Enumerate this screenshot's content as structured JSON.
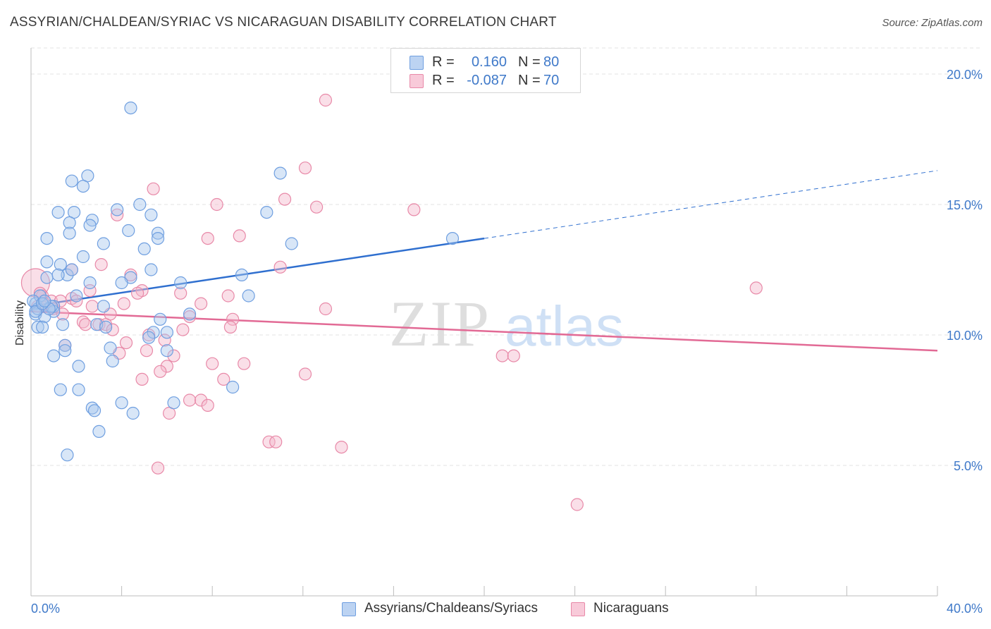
{
  "title": "ASSYRIAN/CHALDEAN/SYRIAC VS NICARAGUAN DISABILITY CORRELATION CHART",
  "source": "Source: ZipAtlas.com",
  "watermark": {
    "zip": "ZIP",
    "atlas": "atlas"
  },
  "legend": {
    "rows": [
      {
        "r_label": "R =",
        "r_value": "0.160",
        "n_label": "N =",
        "n_value": "80"
      },
      {
        "r_label": "R =",
        "r_value": "-0.087",
        "n_label": "N =",
        "n_value": "70"
      }
    ]
  },
  "colors": {
    "blue_fill": "#a9c7ee",
    "blue_stroke": "#6f9fe0",
    "blue_line": "#2f6fcf",
    "pink_fill": "#f4b8cb",
    "pink_stroke": "#e889a8",
    "pink_line": "#e26a95",
    "tick_text": "#3f79c9",
    "grid": "#e3e3e3"
  },
  "chart_data": {
    "type": "scatter",
    "title": "ASSYRIAN/CHALDEAN/SYRIAC VS NICARAGUAN DISABILITY CORRELATION CHART",
    "xlabel": "",
    "ylabel": "Disability",
    "xlim": [
      0,
      40
    ],
    "ylim": [
      0,
      21
    ],
    "x_tick_labels": [
      "0.0%",
      "40.0%"
    ],
    "y_ticks": [
      5,
      10,
      15,
      20
    ],
    "y_tick_labels": [
      "5.0%",
      "10.0%",
      "15.0%",
      "20.0%"
    ],
    "grid": true,
    "legend_position": "top-center",
    "series": [
      {
        "name": "Assyrians/Chaldeans/Syriacs",
        "color": "#a9c7ee",
        "r": 0.16,
        "n": 80,
        "trend": {
          "x0": 0,
          "y0": 11.1,
          "x1": 20,
          "y1": 13.7,
          "dashed_to_x": 40,
          "dashed_to_y": 16.3
        },
        "points": [
          [
            4.4,
            18.7
          ],
          [
            2.5,
            16.1
          ],
          [
            1.8,
            15.9
          ],
          [
            2.3,
            15.7
          ],
          [
            11.0,
            16.2
          ],
          [
            3.8,
            14.8
          ],
          [
            1.2,
            14.7
          ],
          [
            1.9,
            14.7
          ],
          [
            4.8,
            15.0
          ],
          [
            10.4,
            14.7
          ],
          [
            5.3,
            14.6
          ],
          [
            1.7,
            14.3
          ],
          [
            2.7,
            14.4
          ],
          [
            2.6,
            14.2
          ],
          [
            4.3,
            14.0
          ],
          [
            1.7,
            13.9
          ],
          [
            5.6,
            13.9
          ],
          [
            0.7,
            13.7
          ],
          [
            5.6,
            13.7
          ],
          [
            3.2,
            13.5
          ],
          [
            11.5,
            13.5
          ],
          [
            18.6,
            13.7
          ],
          [
            5.0,
            13.3
          ],
          [
            2.3,
            13.0
          ],
          [
            0.7,
            12.8
          ],
          [
            1.3,
            12.7
          ],
          [
            0.7,
            12.2
          ],
          [
            1.6,
            12.3
          ],
          [
            1.2,
            12.3
          ],
          [
            1.8,
            12.5
          ],
          [
            5.3,
            12.5
          ],
          [
            4.4,
            12.2
          ],
          [
            9.3,
            12.3
          ],
          [
            2.6,
            12.0
          ],
          [
            4.0,
            12.0
          ],
          [
            6.6,
            12.0
          ],
          [
            2.0,
            11.5
          ],
          [
            9.6,
            11.5
          ],
          [
            0.2,
            11.2
          ],
          [
            0.5,
            11.2
          ],
          [
            1.0,
            11.1
          ],
          [
            3.2,
            11.1
          ],
          [
            0.2,
            10.8
          ],
          [
            1.0,
            10.9
          ],
          [
            0.6,
            10.7
          ],
          [
            7.0,
            10.8
          ],
          [
            5.7,
            10.6
          ],
          [
            0.3,
            10.3
          ],
          [
            0.5,
            10.3
          ],
          [
            1.4,
            10.4
          ],
          [
            2.9,
            10.4
          ],
          [
            3.3,
            10.3
          ],
          [
            5.4,
            10.1
          ],
          [
            6.0,
            10.1
          ],
          [
            5.2,
            9.9
          ],
          [
            1.5,
            9.6
          ],
          [
            3.5,
            9.5
          ],
          [
            6.0,
            9.4
          ],
          [
            1.5,
            9.4
          ],
          [
            1.0,
            9.2
          ],
          [
            3.6,
            9.0
          ],
          [
            2.1,
            8.8
          ],
          [
            8.9,
            8.0
          ],
          [
            1.3,
            7.9
          ],
          [
            2.1,
            7.9
          ],
          [
            4.0,
            7.4
          ],
          [
            6.3,
            7.4
          ],
          [
            2.7,
            7.2
          ],
          [
            2.8,
            7.1
          ],
          [
            4.5,
            7.0
          ],
          [
            3.0,
            6.3
          ],
          [
            1.6,
            5.4
          ],
          [
            0.3,
            11.0
          ],
          [
            0.9,
            11.1
          ],
          [
            0.4,
            11.5
          ],
          [
            0.1,
            11.3
          ],
          [
            0.2,
            10.9
          ],
          [
            0.8,
            11.0
          ],
          [
            0.5,
            11.2
          ],
          [
            0.6,
            11.3
          ]
        ]
      },
      {
        "name": "Nicaraguans",
        "color": "#f4b8cb",
        "r": -0.087,
        "n": 70,
        "trend": {
          "x0": 0,
          "y0": 10.9,
          "x1": 40,
          "y1": 9.4
        },
        "points": [
          [
            13.0,
            19.0
          ],
          [
            12.1,
            16.4
          ],
          [
            5.4,
            15.6
          ],
          [
            8.2,
            15.0
          ],
          [
            11.2,
            15.2
          ],
          [
            12.6,
            14.9
          ],
          [
            16.9,
            14.8
          ],
          [
            3.8,
            14.6
          ],
          [
            7.8,
            13.7
          ],
          [
            9.2,
            13.8
          ],
          [
            3.1,
            12.7
          ],
          [
            11.0,
            12.6
          ],
          [
            0.2,
            12.0
          ],
          [
            4.4,
            12.3
          ],
          [
            1.8,
            12.5
          ],
          [
            4.9,
            11.7
          ],
          [
            2.6,
            11.7
          ],
          [
            4.7,
            11.6
          ],
          [
            6.6,
            11.6
          ],
          [
            1.8,
            11.4
          ],
          [
            0.5,
            11.5
          ],
          [
            2.0,
            11.3
          ],
          [
            0.9,
            11.3
          ],
          [
            8.7,
            11.5
          ],
          [
            7.5,
            11.2
          ],
          [
            4.1,
            11.2
          ],
          [
            2.7,
            11.1
          ],
          [
            1.3,
            11.3
          ],
          [
            0.3,
            11.1
          ],
          [
            1.0,
            11.0
          ],
          [
            13.0,
            11.0
          ],
          [
            32.0,
            11.8
          ],
          [
            1.4,
            10.8
          ],
          [
            3.5,
            10.8
          ],
          [
            7.0,
            10.7
          ],
          [
            8.9,
            10.6
          ],
          [
            2.3,
            10.5
          ],
          [
            3.0,
            10.4
          ],
          [
            2.4,
            10.4
          ],
          [
            3.3,
            10.4
          ],
          [
            3.6,
            10.2
          ],
          [
            6.7,
            10.2
          ],
          [
            8.8,
            10.3
          ],
          [
            4.2,
            9.7
          ],
          [
            5.2,
            10.0
          ],
          [
            5.9,
            9.8
          ],
          [
            1.5,
            9.6
          ],
          [
            3.9,
            9.3
          ],
          [
            5.1,
            9.4
          ],
          [
            6.3,
            9.2
          ],
          [
            20.8,
            9.2
          ],
          [
            21.3,
            9.2
          ],
          [
            6.0,
            8.8
          ],
          [
            8.0,
            8.9
          ],
          [
            9.4,
            8.9
          ],
          [
            5.7,
            8.6
          ],
          [
            12.1,
            8.5
          ],
          [
            4.9,
            8.3
          ],
          [
            8.5,
            8.3
          ],
          [
            7.0,
            7.5
          ],
          [
            7.5,
            7.5
          ],
          [
            7.8,
            7.3
          ],
          [
            6.1,
            7.0
          ],
          [
            10.5,
            5.9
          ],
          [
            10.8,
            5.9
          ],
          [
            13.7,
            5.7
          ],
          [
            5.6,
            4.9
          ],
          [
            24.1,
            3.5
          ],
          [
            0.4,
            11.6
          ],
          [
            0.6,
            11.2
          ]
        ]
      }
    ]
  }
}
